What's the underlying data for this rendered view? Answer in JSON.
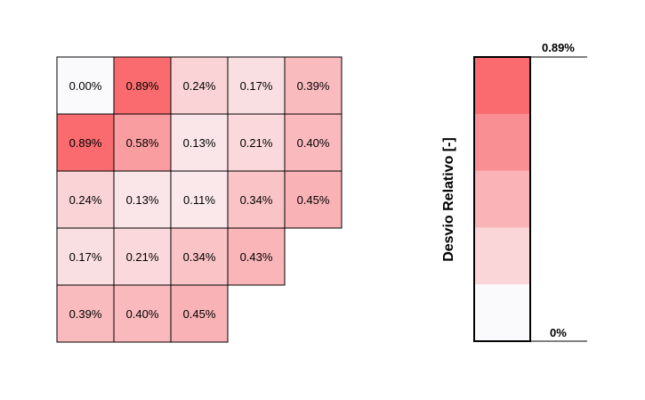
{
  "chart_data": {
    "type": "heatmap",
    "rows": [
      [
        0.0,
        0.89,
        0.24,
        0.17,
        0.39
      ],
      [
        0.89,
        0.58,
        0.13,
        0.21,
        0.4
      ],
      [
        0.24,
        0.13,
        0.11,
        0.34,
        0.45
      ],
      [
        0.17,
        0.21,
        0.34,
        0.43,
        null
      ],
      [
        0.39,
        0.4,
        0.45,
        null,
        null
      ]
    ],
    "value_format": "percent",
    "labels": [
      [
        "0.00%",
        "0.89%",
        "0.24%",
        "0.17%",
        "0.39%"
      ],
      [
        "0.89%",
        "0.58%",
        "0.13%",
        "0.21%",
        "0.40%"
      ],
      [
        "0.24%",
        "0.13%",
        "0.11%",
        "0.34%",
        "0.45%"
      ],
      [
        "0.17%",
        "0.21%",
        "0.34%",
        "0.43%",
        ""
      ],
      [
        "0.39%",
        "0.40%",
        "0.45%",
        "",
        ""
      ]
    ],
    "colorbar": {
      "title": "Desvio Relativo [-]",
      "max_label": "0.89%",
      "min_label": "0%",
      "range": [
        0,
        0.89
      ],
      "bands": 5
    },
    "colors": {
      "low": "#fafafd",
      "high": "#f96b6e",
      "grid": "#000000"
    }
  }
}
